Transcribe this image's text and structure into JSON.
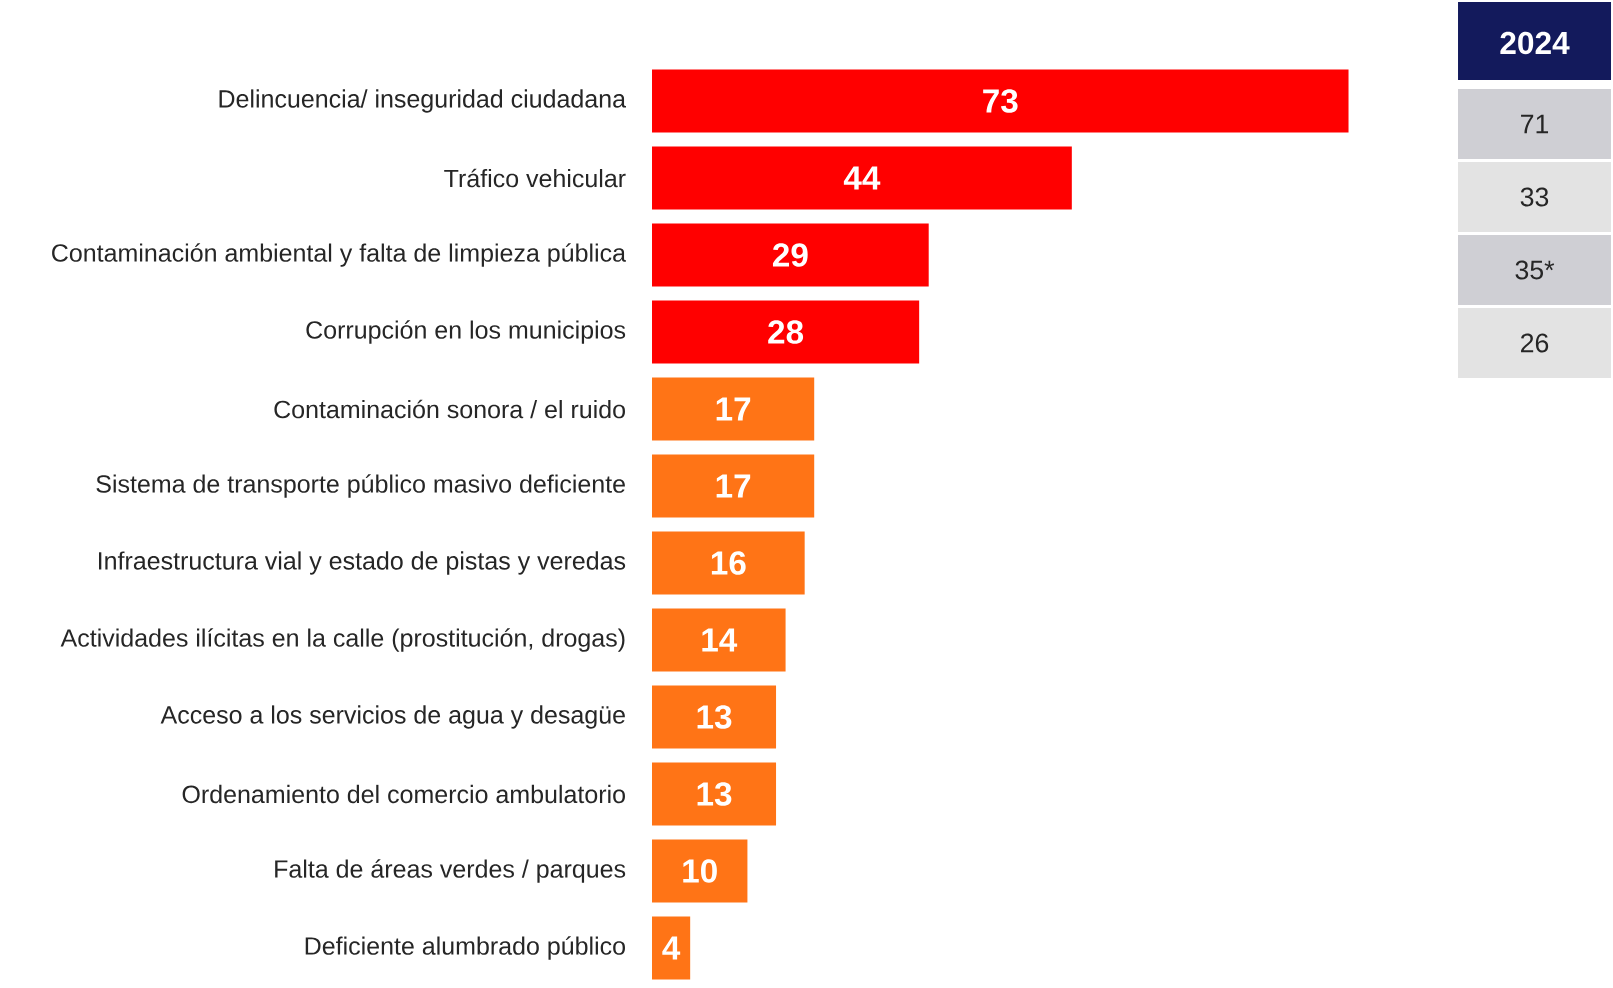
{
  "chart_data": {
    "type": "bar",
    "orientation": "horizontal",
    "categories": [
      "Delincuencia/ inseguridad ciudadana",
      "Tráfico vehicular",
      "Contaminación ambiental y falta de limpieza pública",
      "Corrupción en los municipios",
      "Contaminación sonora / el ruido",
      "Sistema de transporte público masivo deficiente",
      "Infraestructura vial y estado de pistas y veredas",
      "Actividades ilícitas en la calle (prostitución, drogas)",
      "Acceso a los servicios de agua y desagüe",
      "Ordenamiento del comercio ambulatorio",
      "Falta de áreas verdes / parques",
      "Deficiente alumbrado público"
    ],
    "values": [
      73,
      44,
      29,
      28,
      17,
      17,
      16,
      14,
      13,
      13,
      10,
      4
    ],
    "colors": [
      "#ff0000",
      "#ff0000",
      "#ff0000",
      "#ff0000",
      "#ff7416",
      "#ff7416",
      "#ff7416",
      "#ff7416",
      "#ff7416",
      "#ff7416",
      "#ff7416",
      "#ff7416"
    ],
    "data_labels": true,
    "annotations": [
      "2024",
      "71",
      "33",
      "35*",
      "26"
    ]
  }
}
